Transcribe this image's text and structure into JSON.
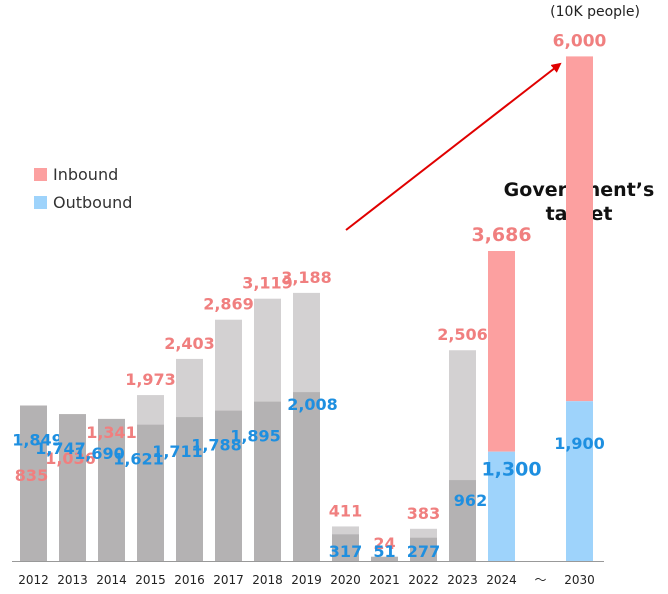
{
  "chart_data": {
    "type": "bar",
    "unit_label": "(10K people)",
    "categories": [
      "2012",
      "2013",
      "2014",
      "2015",
      "2016",
      "2017",
      "2018",
      "2019",
      "2020",
      "2021",
      "2022",
      "2023",
      "2024",
      "～",
      "2030"
    ],
    "series": [
      {
        "name": "Inbound",
        "values": [
          835,
          1036,
          1341,
          1973,
          2403,
          2869,
          3119,
          3188,
          411,
          24,
          383,
          2506,
          3686,
          null,
          6000
        ],
        "labels": [
          "835",
          "1,036",
          "1,341",
          "1,973",
          "2,403",
          "2,869",
          "3,119",
          "3,188",
          "411",
          "24",
          "383",
          "2,506",
          "3,686",
          "",
          "6,000"
        ]
      },
      {
        "name": "Outbound",
        "values": [
          1849,
          1747,
          1690,
          1621,
          1711,
          1788,
          1895,
          2008,
          317,
          51,
          277,
          962,
          1300,
          null,
          1900
        ],
        "labels": [
          "1,849",
          "1,747",
          "1,690",
          "1,621",
          "1,711",
          "1,788",
          "1,895",
          "2,008",
          "317",
          "51",
          "277",
          "962",
          "1,300",
          "",
          "1,900"
        ]
      }
    ],
    "annotation": "Government’s target",
    "colors": {
      "inbound_label": "#f07f7f",
      "outbound_label": "#1e8fe0",
      "bar_past": "#d3d1d2",
      "bar_past_bottom": "#b4b2b3",
      "bar_target_inbound": "#fca0a0",
      "bar_target_outbound": "#9ed3fb",
      "legend_inbound": "#fca0a0",
      "legend_outbound": "#9ed3fb",
      "arrow": "#e00000"
    }
  }
}
